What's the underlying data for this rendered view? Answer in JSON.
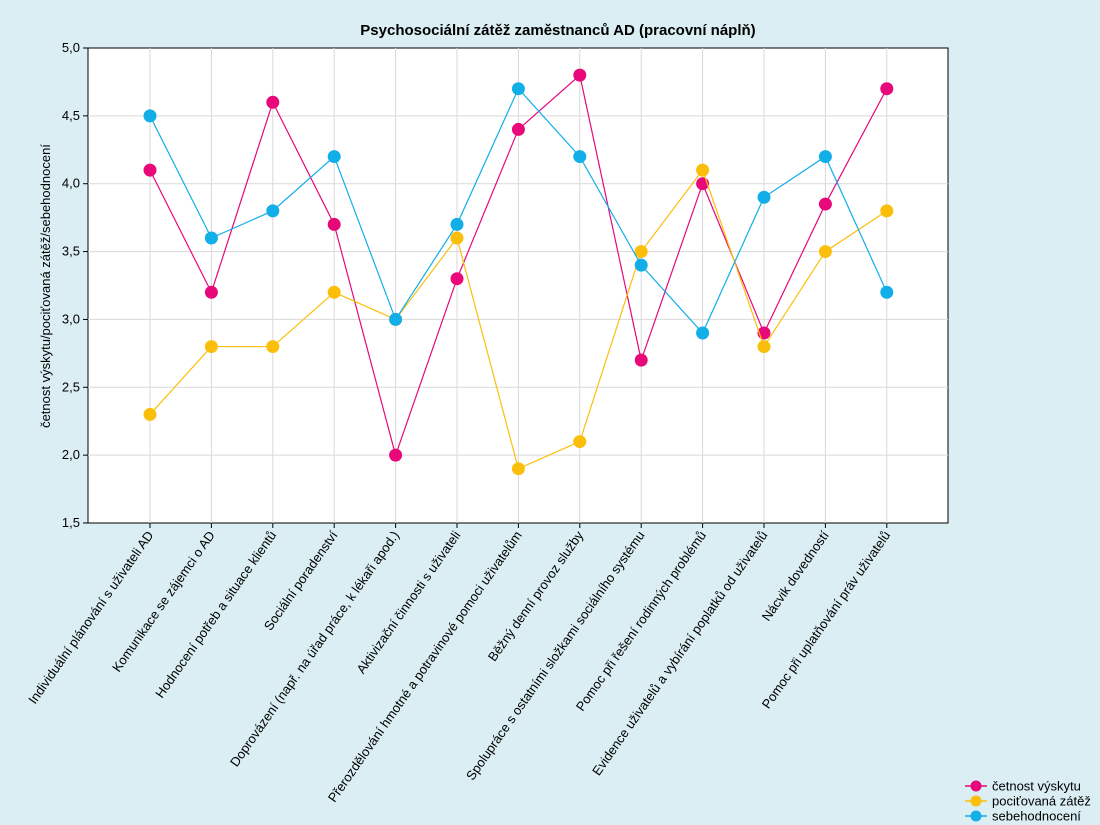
{
  "chart_data": {
    "type": "line",
    "title": "Psychosociální zátěž zaměstnanců AD (pracovní náplň)",
    "xlabel": "",
    "ylabel": "četnost výskytu/pociťovaná zátěž/sebehodnocení",
    "ylim": [
      1.5,
      5.0
    ],
    "yticks": [
      "1,5",
      "2,0",
      "2,5",
      "3,0",
      "3,5",
      "4,0",
      "4,5",
      "5,0"
    ],
    "grid": true,
    "legend_position": "bottom-right",
    "categories": [
      "Individuální plánování s uživateli AD",
      "Komunikace se zájemci o AD",
      "Hodnocení potřeb a situace klientů",
      "Sociální poradenství",
      "Doprovázení (např. na úřad práce, k lékaři apod.)",
      "Aktivizační činnosti s uživateli",
      "Přerozdělování hmotné a potravinové pomoci uživatelům",
      "Běžný denní provoz služby",
      "Spolupráce s ostatními složkami sociálního systému",
      "Pomoc při řešení rodinných problémů",
      "Evidence uživatelů a vybírání poplatků od uživatelů",
      "Nácvik dovedností",
      "Pomoc při uplatňování práv uživatelů"
    ],
    "series": [
      {
        "name": "četnost výskytu",
        "color": "#e8087a",
        "values": [
          4.1,
          3.2,
          4.6,
          3.7,
          2.0,
          3.3,
          4.4,
          4.8,
          2.7,
          4.0,
          2.9,
          3.85,
          4.7
        ]
      },
      {
        "name": "pociťovaná zátěž",
        "color": "#fbbf0b",
        "values": [
          2.3,
          2.8,
          2.8,
          3.2,
          3.0,
          3.6,
          1.9,
          2.1,
          3.5,
          4.1,
          2.8,
          3.5,
          3.8
        ]
      },
      {
        "name": "sebehodnocení",
        "color": "#12aee8",
        "values": [
          4.5,
          3.6,
          3.8,
          4.2,
          3.0,
          3.7,
          4.7,
          4.2,
          3.4,
          2.9,
          3.9,
          4.2,
          3.2
        ]
      }
    ]
  }
}
